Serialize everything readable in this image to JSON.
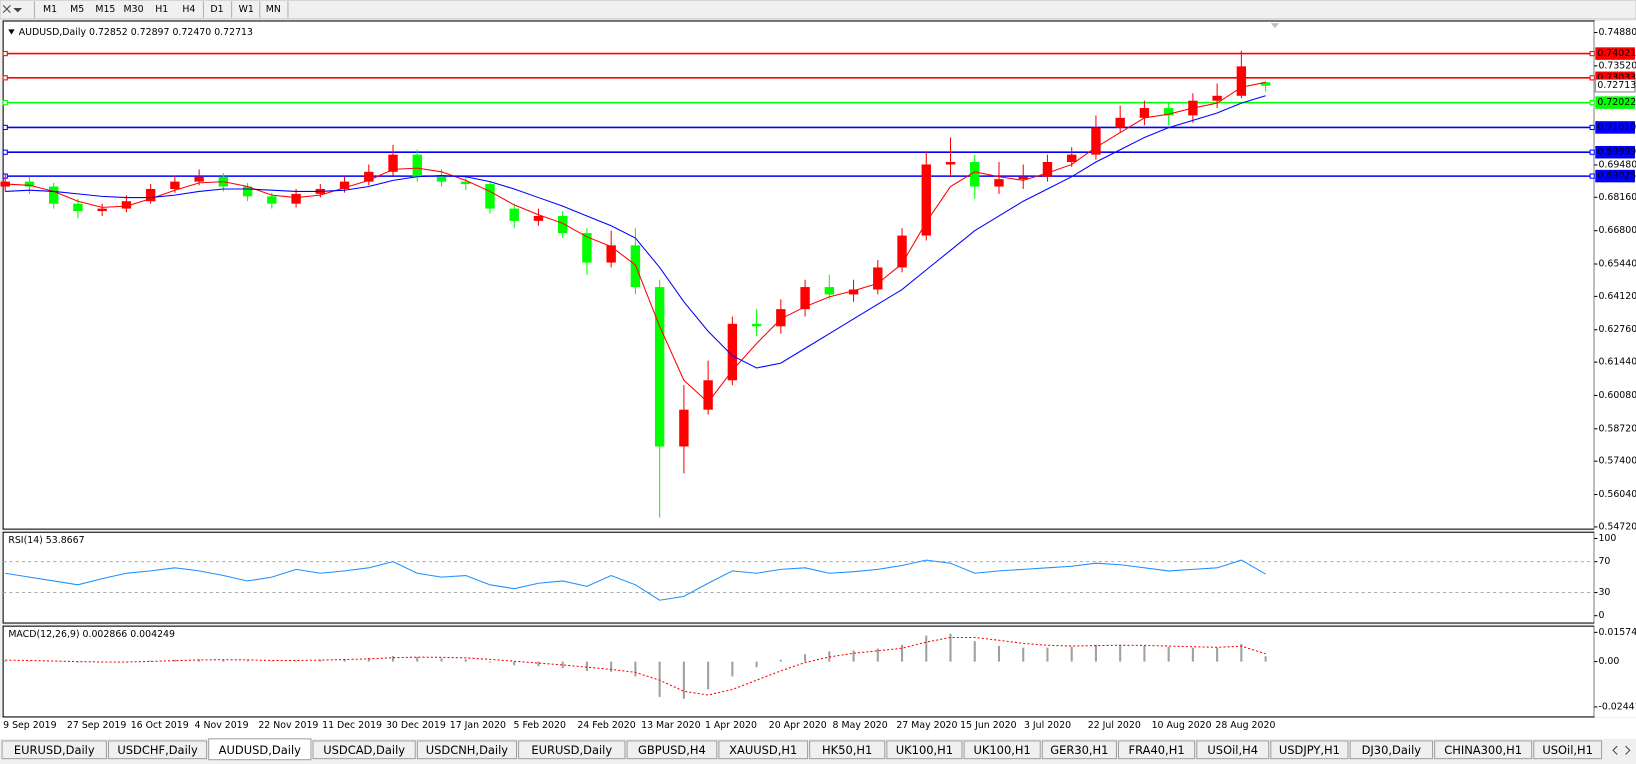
{
  "toolbar": {
    "timeframes": [
      "M1",
      "M5",
      "M15",
      "M30",
      "H1",
      "H4",
      "D1",
      "W1",
      "MN"
    ]
  },
  "chart_data": [
    {
      "type": "candlestick",
      "title": "AUDUSD,Daily  0.72852 0.72897 0.72470 0.72713",
      "up_color": "#ff0000",
      "down_color": "#00ff00",
      "open": [
        0.686,
        0.688,
        0.686,
        0.679,
        0.676,
        0.677,
        0.68,
        0.685,
        0.688,
        0.69,
        0.686,
        0.682,
        0.679,
        0.683,
        0.685,
        0.688,
        0.692,
        0.699,
        0.69,
        0.688,
        0.687,
        0.677,
        0.672,
        0.674,
        0.667,
        0.655,
        0.662,
        0.645,
        0.58,
        0.595,
        0.607,
        0.63,
        0.629,
        0.636,
        0.645,
        0.642,
        0.644,
        0.653,
        0.666,
        0.695,
        0.696,
        0.686,
        0.689,
        0.69,
        0.696,
        0.699,
        0.71,
        0.714,
        0.718,
        0.715,
        0.721,
        0.723,
        0.72852
      ],
      "high": [
        0.691,
        0.69,
        0.6875,
        0.681,
        0.679,
        0.6825,
        0.687,
        0.6905,
        0.693,
        0.6915,
        0.6875,
        0.6835,
        0.685,
        0.687,
        0.69,
        0.695,
        0.703,
        0.701,
        0.693,
        0.69,
        0.688,
        0.679,
        0.677,
        0.676,
        0.669,
        0.668,
        0.669,
        0.648,
        0.605,
        0.615,
        0.633,
        0.636,
        0.64,
        0.648,
        0.65,
        0.648,
        0.656,
        0.669,
        0.7,
        0.706,
        0.699,
        0.696,
        0.695,
        0.699,
        0.702,
        0.715,
        0.719,
        0.721,
        0.72,
        0.724,
        0.728,
        0.7414,
        0.72897
      ],
      "low": [
        0.684,
        0.683,
        0.677,
        0.673,
        0.674,
        0.6755,
        0.679,
        0.6835,
        0.6865,
        0.684,
        0.68,
        0.677,
        0.6775,
        0.6815,
        0.6835,
        0.6865,
        0.6905,
        0.688,
        0.686,
        0.6845,
        0.675,
        0.669,
        0.67,
        0.665,
        0.65,
        0.653,
        0.642,
        0.551,
        0.569,
        0.593,
        0.605,
        0.625,
        0.626,
        0.633,
        0.64,
        0.639,
        0.642,
        0.651,
        0.664,
        0.69,
        0.681,
        0.683,
        0.685,
        0.688,
        0.694,
        0.697,
        0.708,
        0.711,
        0.711,
        0.712,
        0.718,
        0.722,
        0.7247
      ],
      "close": [
        0.688,
        0.686,
        0.679,
        0.676,
        0.677,
        0.68,
        0.685,
        0.688,
        0.69,
        0.686,
        0.682,
        0.679,
        0.683,
        0.685,
        0.688,
        0.692,
        0.699,
        0.69,
        0.688,
        0.687,
        0.677,
        0.672,
        0.674,
        0.667,
        0.655,
        0.662,
        0.645,
        0.58,
        0.595,
        0.607,
        0.63,
        0.629,
        0.636,
        0.645,
        0.642,
        0.644,
        0.653,
        0.666,
        0.695,
        0.696,
        0.686,
        0.689,
        0.69,
        0.696,
        0.699,
        0.71,
        0.714,
        0.718,
        0.715,
        0.721,
        0.723,
        0.735,
        0.72713
      ],
      "series": [
        {
          "color": "#ff0000",
          "values": [
            0.687,
            0.6865,
            0.684,
            0.68,
            0.6775,
            0.678,
            0.681,
            0.6845,
            0.6875,
            0.688,
            0.686,
            0.6825,
            0.6815,
            0.6825,
            0.6855,
            0.6885,
            0.693,
            0.6935,
            0.692,
            0.6885,
            0.684,
            0.6785,
            0.6745,
            0.671,
            0.6655,
            0.6615,
            0.654,
            0.629,
            0.607,
            0.598,
            0.611,
            0.622,
            0.632,
            0.637,
            0.641,
            0.6435,
            0.6465,
            0.6545,
            0.6715,
            0.686,
            0.692,
            0.69,
            0.6885,
            0.6915,
            0.695,
            0.702,
            0.708,
            0.714,
            0.7155,
            0.718,
            0.72,
            0.7265,
            0.7285
          ]
        },
        {
          "color": "#0000ff",
          "values": [
            0.684,
            0.6845,
            0.684,
            0.683,
            0.682,
            0.6815,
            0.6815,
            0.6825,
            0.684,
            0.685,
            0.685,
            0.6845,
            0.684,
            0.684,
            0.6845,
            0.686,
            0.6885,
            0.69,
            0.6905,
            0.69,
            0.688,
            0.685,
            0.6815,
            0.678,
            0.674,
            0.67,
            0.665,
            0.653,
            0.639,
            0.627,
            0.617,
            0.612,
            0.614,
            0.62,
            0.626,
            0.632,
            0.638,
            0.644,
            0.652,
            0.66,
            0.668,
            0.674,
            0.68,
            0.685,
            0.69,
            0.696,
            0.701,
            0.706,
            0.71,
            0.713,
            0.716,
            0.72,
            0.723
          ]
        }
      ],
      "ylim": [
        0.5463,
        0.7535
      ],
      "yticks": [
        {
          "value": 0.7488,
          "label": "0.74880"
        },
        {
          "value": 0.7352,
          "label": "0.73520"
        },
        {
          "value": 0.6948,
          "label": "0.69480"
        },
        {
          "value": 0.6816,
          "label": "0.68160"
        },
        {
          "value": 0.668,
          "label": "0.66800"
        },
        {
          "value": 0.6544,
          "label": "0.65440"
        },
        {
          "value": 0.6412,
          "label": "0.64120"
        },
        {
          "value": 0.6276,
          "label": "0.62760"
        },
        {
          "value": 0.6144,
          "label": "0.61440"
        },
        {
          "value": 0.6008,
          "label": "0.60080"
        },
        {
          "value": 0.5872,
          "label": "0.58720"
        },
        {
          "value": 0.574,
          "label": "0.57400"
        },
        {
          "value": 0.5604,
          "label": "0.56040"
        },
        {
          "value": 0.5472,
          "label": "0.54720"
        }
      ],
      "levels": [
        {
          "value": 0.74021,
          "color": "#ff0000"
        },
        {
          "value": 0.73033,
          "color": "#ff0000"
        },
        {
          "value": 0.72022,
          "color": "#00ff00"
        },
        {
          "value": 0.7101,
          "label": "0.71010",
          "color": "#0000ff"
        },
        {
          "value": 0.69999,
          "color": "#0000ff"
        },
        {
          "value": 0.69025,
          "color": "#0000ff"
        }
      ],
      "date_labels": [
        "9 Sep 2019",
        "27 Sep 2019",
        "16 Oct 2019",
        "4 Nov 2019",
        "22 Nov 2019",
        "11 Dec 2019",
        "30 Dec 2019",
        "17 Jan 2020",
        "5 Feb 2020",
        "24 Feb 2020",
        "13 Mar 2020",
        "1 Apr 2020",
        "20 Apr 2020",
        "8 May 2020",
        "27 May 2020",
        "15 Jun 2020",
        "3 Jul 2020",
        "22 Jul 2020",
        "10 Aug 2020",
        "28 Aug 2020"
      ]
    },
    {
      "type": "line",
      "title": "RSI(14) 53.8667",
      "color": "#1e90ff",
      "values": [
        55,
        50,
        45,
        40,
        48,
        55,
        58,
        62,
        58,
        52,
        45,
        50,
        60,
        55,
        58,
        62,
        70,
        55,
        50,
        52,
        40,
        35,
        42,
        45,
        38,
        52,
        40,
        20,
        25,
        42,
        58,
        55,
        60,
        62,
        55,
        57,
        60,
        65,
        72,
        68,
        55,
        58,
        60,
        62,
        64,
        68,
        66,
        62,
        58,
        60,
        62,
        72,
        53.8667
      ],
      "ylim": [
        -9.5,
        108.1
      ],
      "yticks": [
        100,
        70,
        30,
        0
      ],
      "levels": [
        70,
        30
      ]
    },
    {
      "type": "macd",
      "title": "MACD(12,26,9) 0.002866 0.004249",
      "color": "#a0a0a0",
      "signal_color": "#ff0000",
      "values": [
        0.0005,
        0.0003,
        0,
        -0.0005,
        -0.0004,
        0,
        0.0005,
        0.001,
        0.0012,
        0.001,
        0.0005,
        0.0002,
        0.0005,
        0.001,
        0.0015,
        0.002,
        0.003,
        0.0025,
        0.0018,
        0.0012,
        -0.0005,
        -0.002,
        -0.0025,
        -0.0035,
        -0.005,
        -0.0055,
        -0.008,
        -0.019,
        -0.02,
        -0.015,
        -0.008,
        -0.003,
        0.001,
        0.004,
        0.0055,
        0.006,
        0.007,
        0.009,
        0.014,
        0.015,
        0.011,
        0.0085,
        0.0075,
        0.0075,
        0.008,
        0.009,
        0.009,
        0.0085,
        0.008,
        0.0075,
        0.0075,
        0.0095,
        0.002866
      ],
      "signal": [
        0.0008,
        0.0006,
        0.0003,
        0,
        -0.0002,
        -0.0002,
        0.0001,
        0.0005,
        0.0009,
        0.001,
        0.0009,
        0.0006,
        0.0006,
        0.0008,
        0.0011,
        0.0015,
        0.0021,
        0.0024,
        0.0023,
        0.002,
        0.0012,
        0.0002,
        -0.0008,
        -0.0018,
        -0.003,
        -0.0042,
        -0.0058,
        -0.01,
        -0.016,
        -0.018,
        -0.015,
        -0.01,
        -0.005,
        -0.0005,
        0.0025,
        0.0045,
        0.0058,
        0.0072,
        0.0105,
        0.013,
        0.013,
        0.0115,
        0.0098,
        0.0088,
        0.0084,
        0.0086,
        0.0088,
        0.0087,
        0.0084,
        0.008,
        0.0077,
        0.0083,
        0.004249
      ],
      "ylim": [
        -0.0298,
        0.0191
      ],
      "yticks": [
        0.015741,
        {
          "value": 0,
          "label": "0.00"
        },
        -0.02441
      ]
    }
  ],
  "tabs": [
    "EURUSD,Daily",
    "USDCHF,Daily",
    "AUDUSD,Daily",
    "USDCAD,Daily",
    "USDCNH,Daily",
    "EURUSD,Daily",
    "GBPUSD,H4",
    "XAUUSD,H1",
    "HK50,H1",
    "UK100,H1",
    "UK100,H1",
    "GER30,H1",
    "FRA40,H1",
    "USOil,H4",
    "USDJPY,H1",
    "DJ30,Daily",
    "CHINA300,H1",
    "USOil,H1"
  ],
  "active_tab": 2
}
